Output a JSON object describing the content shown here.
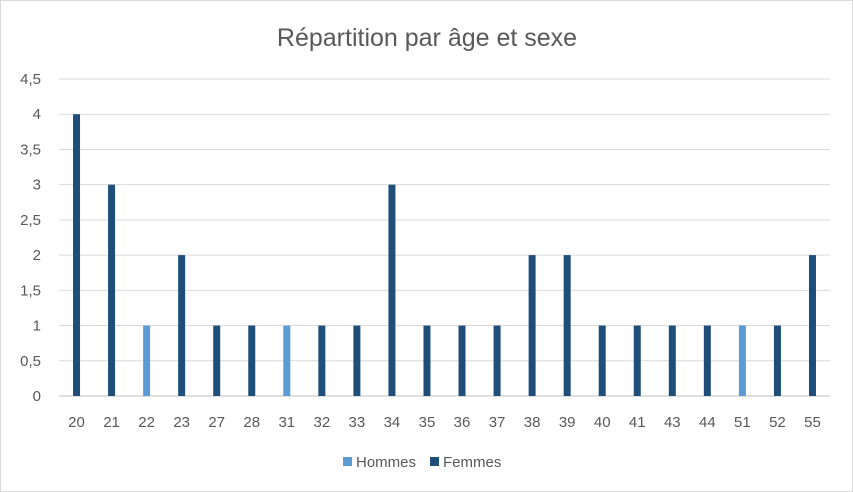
{
  "chart_data": {
    "type": "bar",
    "title": "Répartition par âge et sexe",
    "xlabel": "",
    "ylabel": "",
    "categories": [
      "20",
      "21",
      "22",
      "23",
      "27",
      "28",
      "31",
      "32",
      "33",
      "34",
      "35",
      "36",
      "37",
      "38",
      "39",
      "40",
      "41",
      "43",
      "44",
      "51",
      "52",
      "55"
    ],
    "series": [
      {
        "name": "Hommes",
        "color": "#5b9bd5",
        "values": [
          0,
          0,
          1,
          0,
          0,
          0,
          1,
          0,
          0,
          0,
          0,
          0,
          0,
          0,
          0,
          0,
          0,
          0,
          0,
          1,
          0,
          0
        ]
      },
      {
        "name": "Femmes",
        "color": "#1f4e79",
        "values": [
          4,
          3,
          0,
          2,
          1,
          1,
          0,
          1,
          1,
          3,
          1,
          1,
          1,
          2,
          2,
          1,
          1,
          1,
          1,
          0,
          1,
          2
        ]
      }
    ],
    "yticks": [
      "0",
      "0,5",
      "1",
      "1,5",
      "2",
      "2,5",
      "3",
      "3,5",
      "4",
      "4,5"
    ],
    "ylim": [
      0,
      4.5
    ],
    "grid": true,
    "legend_position": "bottom"
  }
}
